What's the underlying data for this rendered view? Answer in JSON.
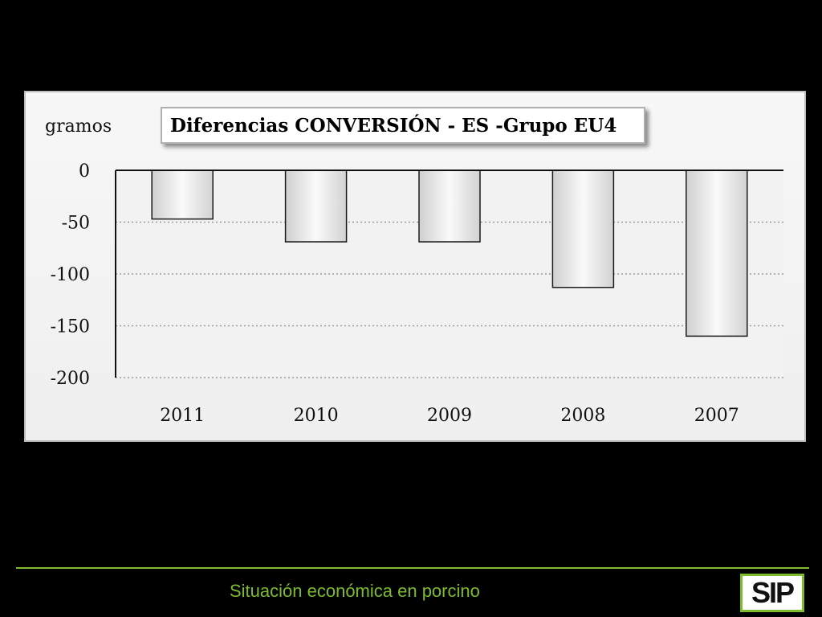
{
  "chart_data": {
    "type": "bar",
    "title": "Diferencias CONVERSIÓN - ES -Grupo EU4",
    "ylabel": "gramos",
    "xlabel": "",
    "categories": [
      "2011",
      "2010",
      "2009",
      "2008",
      "2007"
    ],
    "values": [
      -47,
      -69,
      -69,
      -113,
      -160
    ],
    "ylim": [
      -200,
      0
    ],
    "yticks": [
      "0",
      "-50",
      "-100",
      "-150",
      "-200"
    ],
    "ytick_values": [
      0,
      -50,
      -100,
      -150,
      -200
    ],
    "grid": true,
    "bar_color": "#ededed",
    "bar_edge_color": "#1a1a1a"
  },
  "footer": {
    "text": "Situación económica en porcino",
    "accent_color": "#7dbb2e"
  },
  "logo": {
    "text": "SIP"
  }
}
